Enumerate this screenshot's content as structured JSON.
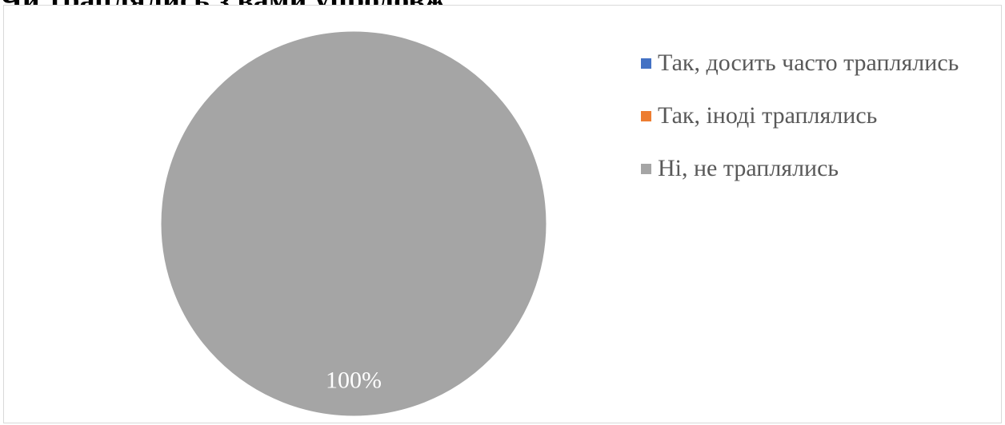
{
  "page": {
    "heading": "Чи траплялись з вами упродовж"
  },
  "chart_data": {
    "type": "pie",
    "title": "",
    "categories": [
      "Так, досить часто траплялись",
      "Так, іноді траплялись",
      "Ні, не траплялись"
    ],
    "values": [
      0,
      0,
      100
    ],
    "data_labels": [
      "",
      "",
      "100%"
    ],
    "colors": [
      "#4472c4",
      "#ed7d31",
      "#a5a5a5"
    ],
    "legend_position": "right"
  }
}
